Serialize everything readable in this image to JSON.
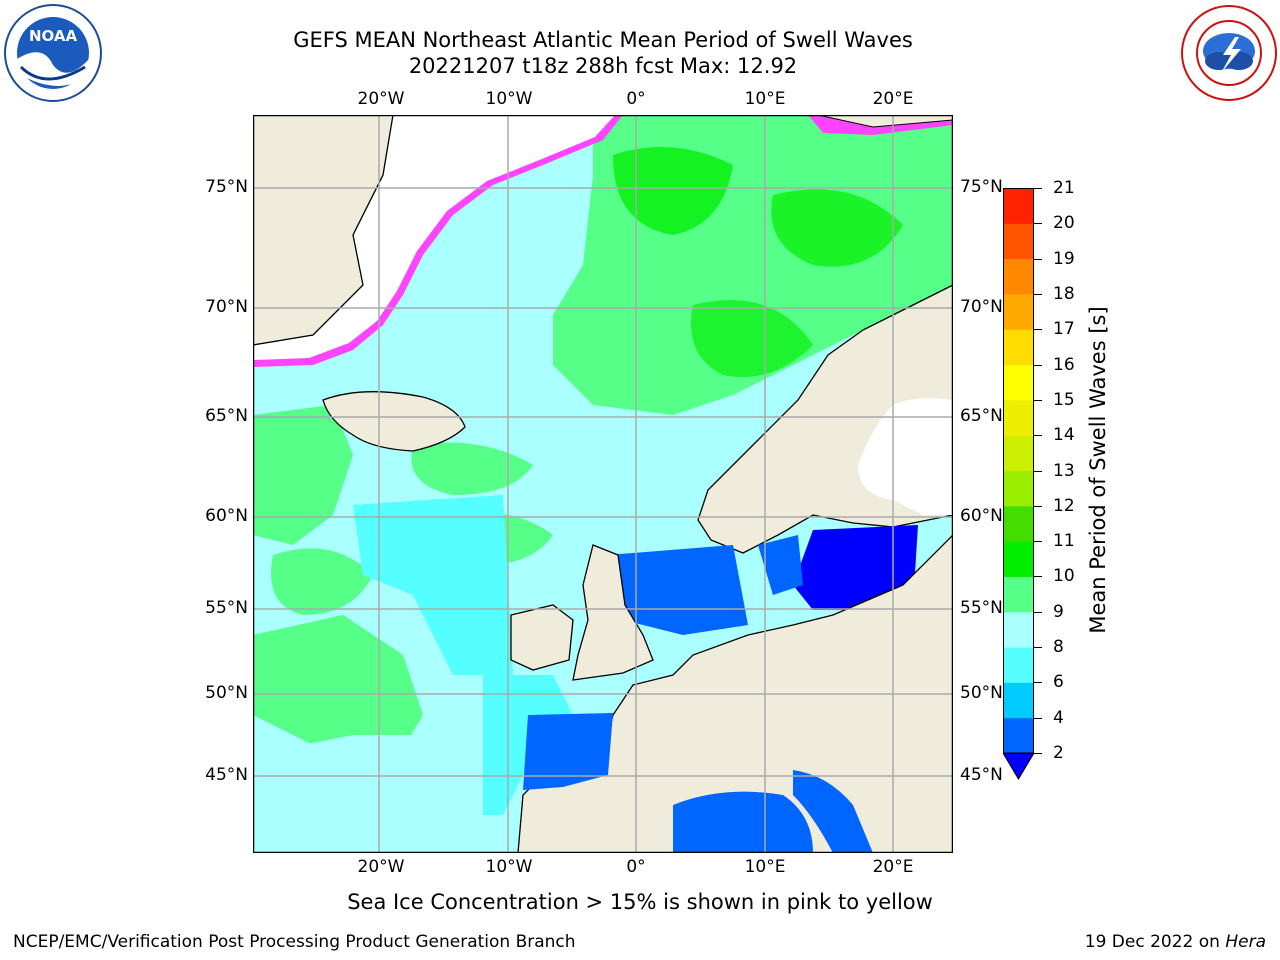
{
  "title_line1": "GEFS MEAN Northeast Atlantic Mean Period of Swell Waves",
  "title_line2": "20221207 t18z 288h fcst   Max: 12.92",
  "logos": {
    "left": "noaa-logo",
    "right": "national-weather-service-logo"
  },
  "map": {
    "projection": "lat-lon",
    "lat_labels_left": [
      "75°N",
      "70°N",
      "65°N",
      "60°N",
      "55°N",
      "50°N",
      "45°N"
    ],
    "lat_labels_right": [
      "75°N",
      "70°N",
      "65°N",
      "60°N",
      "55°N",
      "50°N",
      "45°N"
    ],
    "lon_labels_top": [
      "20°W",
      "10°W",
      "0°",
      "10°E",
      "20°E"
    ],
    "lon_labels_bottom": [
      "20°W",
      "10°W",
      "0°",
      "10°E",
      "20°E"
    ],
    "colors": {
      "land": "#efecdc",
      "ice_note_pink": "#ff44ff",
      "grid": "#aaaaaa"
    }
  },
  "colorbar": {
    "label": "Mean Period of Swell Waves [s]",
    "ticks": [
      "2",
      "4",
      "6",
      "8",
      "9",
      "10",
      "11",
      "12",
      "13",
      "14",
      "15",
      "16",
      "17",
      "18",
      "19",
      "20",
      "21"
    ],
    "colors": [
      "#0066ff",
      "#00ccff",
      "#55ffff",
      "#aaffff",
      "#55ff88",
      "#00ee00",
      "#44dd00",
      "#99ee00",
      "#ccee00",
      "#eeee00",
      "#ffff00",
      "#ffdd00",
      "#ffaa00",
      "#ff8800",
      "#ff5500",
      "#ff2200"
    ],
    "extend_color": "#0000ff"
  },
  "ice_note": "Sea Ice Concentration > 15% is shown in pink to yellow",
  "footer_left": "NCEP/EMC/Verification Post Processing Product Generation Branch",
  "footer_right_date": "19 Dec 2022 on",
  "footer_right_host": "Hera"
}
